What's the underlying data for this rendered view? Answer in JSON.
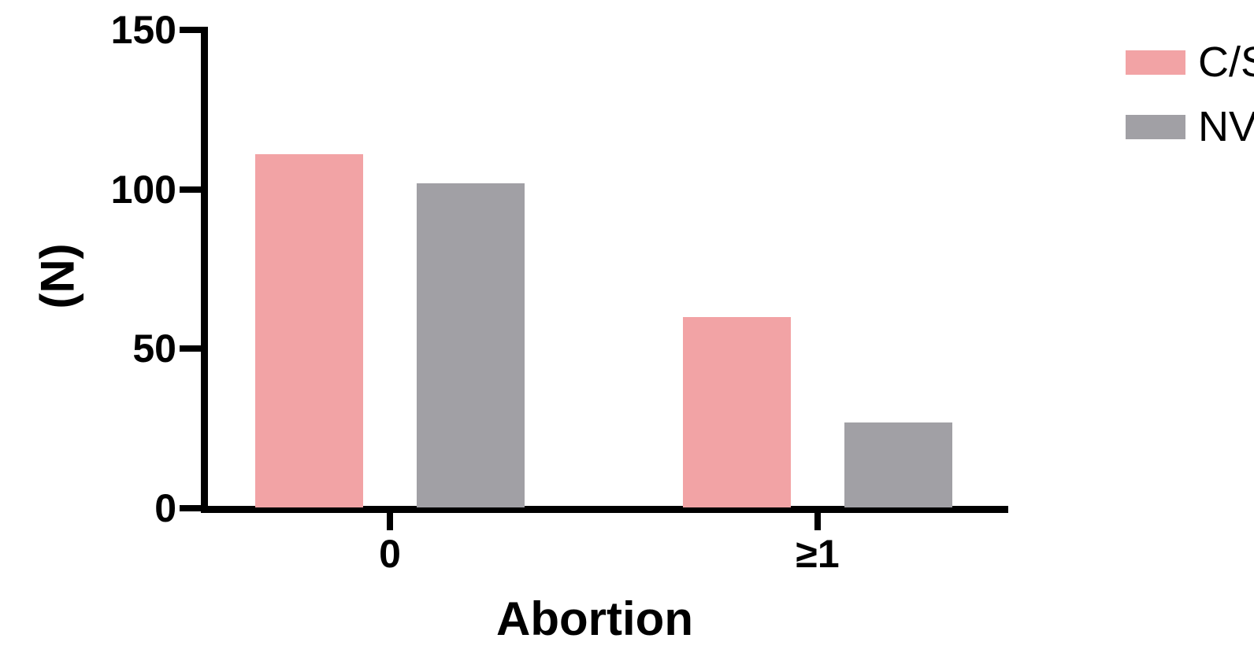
{
  "chart_data": {
    "type": "bar",
    "title": "",
    "xlabel": "Abortion",
    "ylabel": "(N)",
    "categories": [
      "0",
      "≥1"
    ],
    "series": [
      {
        "name": "C/S",
        "color": "#F2A3A5",
        "values": [
          111,
          60
        ]
      },
      {
        "name": "NVD",
        "color": "#A1A0A5",
        "values": [
          102,
          27
        ]
      }
    ],
    "ylim": [
      0,
      150
    ],
    "yticks": [
      0,
      50,
      100,
      150
    ],
    "grid": false,
    "legend_position": "top-right",
    "axis_color": "#000000"
  }
}
